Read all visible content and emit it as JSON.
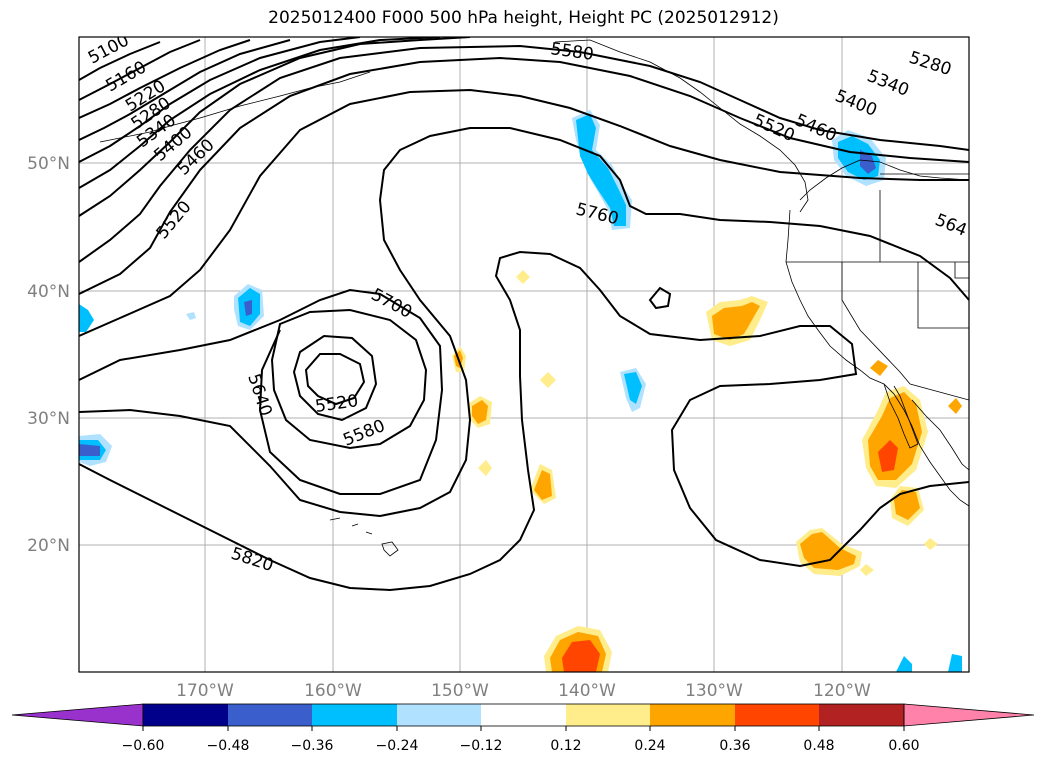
{
  "title": "2025012400 F000 500 hPa height, Height PC (2025012912)",
  "lat_labels": [
    "50°N",
    "40°N",
    "30°N",
    "20°N"
  ],
  "lon_labels": [
    "170°W",
    "160°W",
    "150°W",
    "140°W",
    "130°W",
    "120°W"
  ],
  "contour_labels": [
    "5100",
    "5160",
    "5220",
    "5280",
    "5340",
    "5400",
    "5460",
    "5520",
    "5580",
    "5760",
    "5700",
    "5640",
    "5520",
    "5580",
    "5820",
    "5520",
    "5460",
    "5400",
    "5340",
    "5280",
    "564"
  ],
  "colorbar": {
    "ticks": [
      "−0.60",
      "−0.48",
      "−0.36",
      "−0.24",
      "−0.12",
      "0.12",
      "0.24",
      "0.36",
      "0.48",
      "0.60"
    ],
    "colors": [
      "#9932cc",
      "#00008b",
      "#3a5fcd",
      "#00bfff",
      "#b0e2ff",
      "#ffffff",
      "#ffec8b",
      "#ffa500",
      "#ff4500",
      "#b22222",
      "#ff82ab"
    ]
  },
  "colors": {
    "axis_label": "#808080",
    "grid": "#b0b0b0",
    "contour": "#000000"
  }
}
